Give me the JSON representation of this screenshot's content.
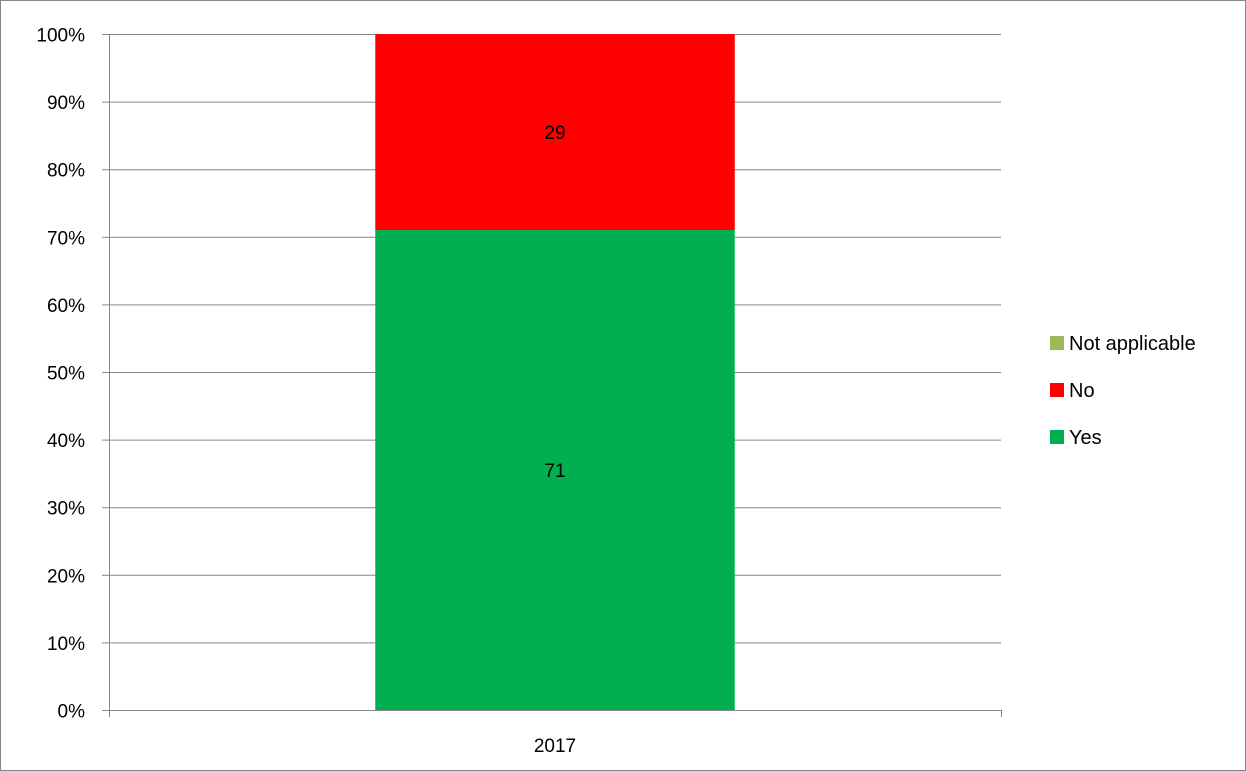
{
  "chart_data": {
    "type": "bar",
    "stacked": true,
    "normalized": true,
    "title": "",
    "xlabel": "",
    "ylabel": "",
    "categories": [
      "2017"
    ],
    "series": [
      {
        "name": "Yes",
        "values": [
          71
        ],
        "color": "#00B050"
      },
      {
        "name": "No",
        "values": [
          29
        ],
        "color": "#FF0000"
      },
      {
        "name": "Not applicable",
        "values": [
          0
        ],
        "color": "#9BBB59"
      }
    ],
    "data_labels": [
      {
        "series": "Yes",
        "category": "2017",
        "text": "71"
      },
      {
        "series": "No",
        "category": "2017",
        "text": "29"
      }
    ],
    "ylim": [
      0,
      100
    ],
    "y_ticks": [
      0,
      10,
      20,
      30,
      40,
      50,
      60,
      70,
      80,
      90,
      100
    ],
    "y_tick_labels": [
      "0%",
      "10%",
      "20%",
      "30%",
      "40%",
      "50%",
      "60%",
      "70%",
      "80%",
      "90%",
      "100%"
    ],
    "grid": true,
    "legend": {
      "position": "right",
      "items": [
        "Not applicable",
        "No",
        "Yes"
      ]
    },
    "colors": {
      "gridline": "#868686",
      "axis": "#868686",
      "frame": "#868686"
    }
  }
}
